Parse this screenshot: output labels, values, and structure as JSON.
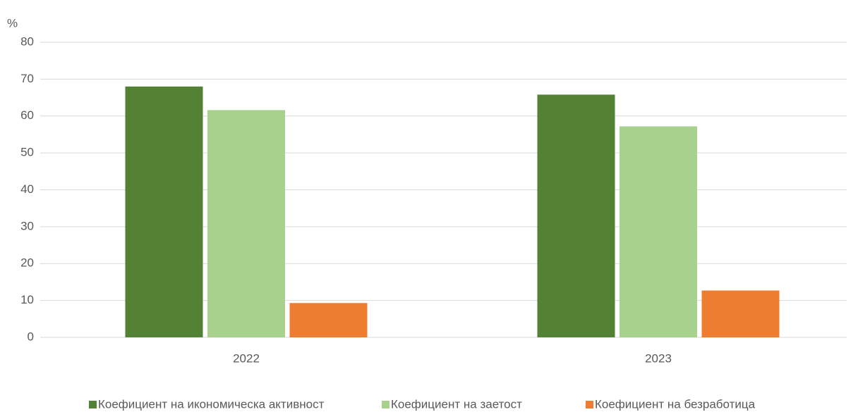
{
  "chart_data": {
    "type": "bar",
    "y_label": "%",
    "categories": [
      "2022",
      "2023"
    ],
    "series": [
      {
        "name": "Коефициент на икономическа активност",
        "color": "#548235",
        "values": [
          68.0,
          65.8
        ]
      },
      {
        "name": "Коефициент на заетост",
        "color": "#a9d18e",
        "values": [
          61.6,
          57.2
        ]
      },
      {
        "name": "Коефициент на безработица",
        "color": "#ed7d31",
        "values": [
          9.3,
          12.7
        ]
      }
    ],
    "ylim": [
      0,
      80
    ],
    "yticks": [
      0,
      10,
      20,
      30,
      40,
      50,
      60,
      70,
      80
    ],
    "grid": true,
    "legend": "bottom"
  }
}
